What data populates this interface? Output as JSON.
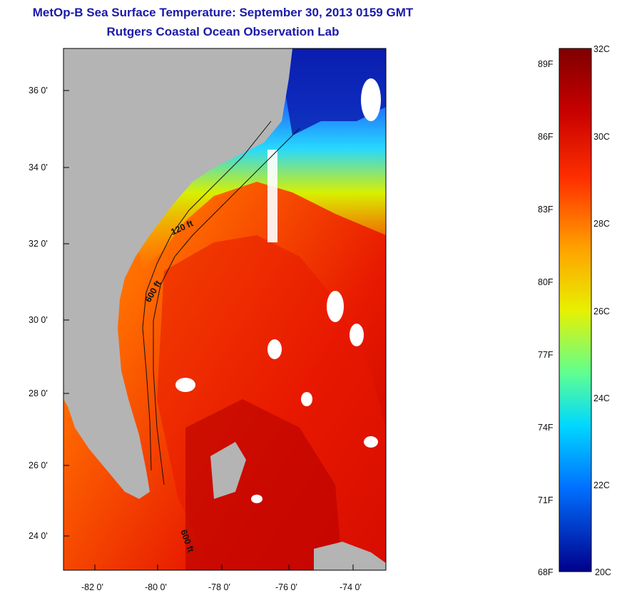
{
  "title": "MetOp-B Sea Surface Temperature:  September 30, 2013 0159 GMT",
  "subtitle": "Rutgers Coastal Ocean Observation Lab",
  "lat_ticks": [
    "36 0'",
    "34 0'",
    "32 0'",
    "30 0'",
    "28 0'",
    "26 0'",
    "24 0'"
  ],
  "lon_ticks": [
    "-82 0'",
    "-80 0'",
    "-78 0'",
    "-76 0'",
    "-74 0'"
  ],
  "isobaths": [
    "120 ft",
    "600 ft",
    "600 ft"
  ],
  "colorbar": {
    "celsius": [
      "32C",
      "30C",
      "28C",
      "26C",
      "24C",
      "22C",
      "20C"
    ],
    "fahrenheit": [
      "89F",
      "86F",
      "83F",
      "80F",
      "77F",
      "74F",
      "71F",
      "68F"
    ],
    "range_c": [
      20,
      32
    ]
  },
  "colors": {
    "title": "#1a1aa8",
    "land": "#b4b4b4",
    "cold": "#00008b",
    "warm": "#7f0000"
  }
}
